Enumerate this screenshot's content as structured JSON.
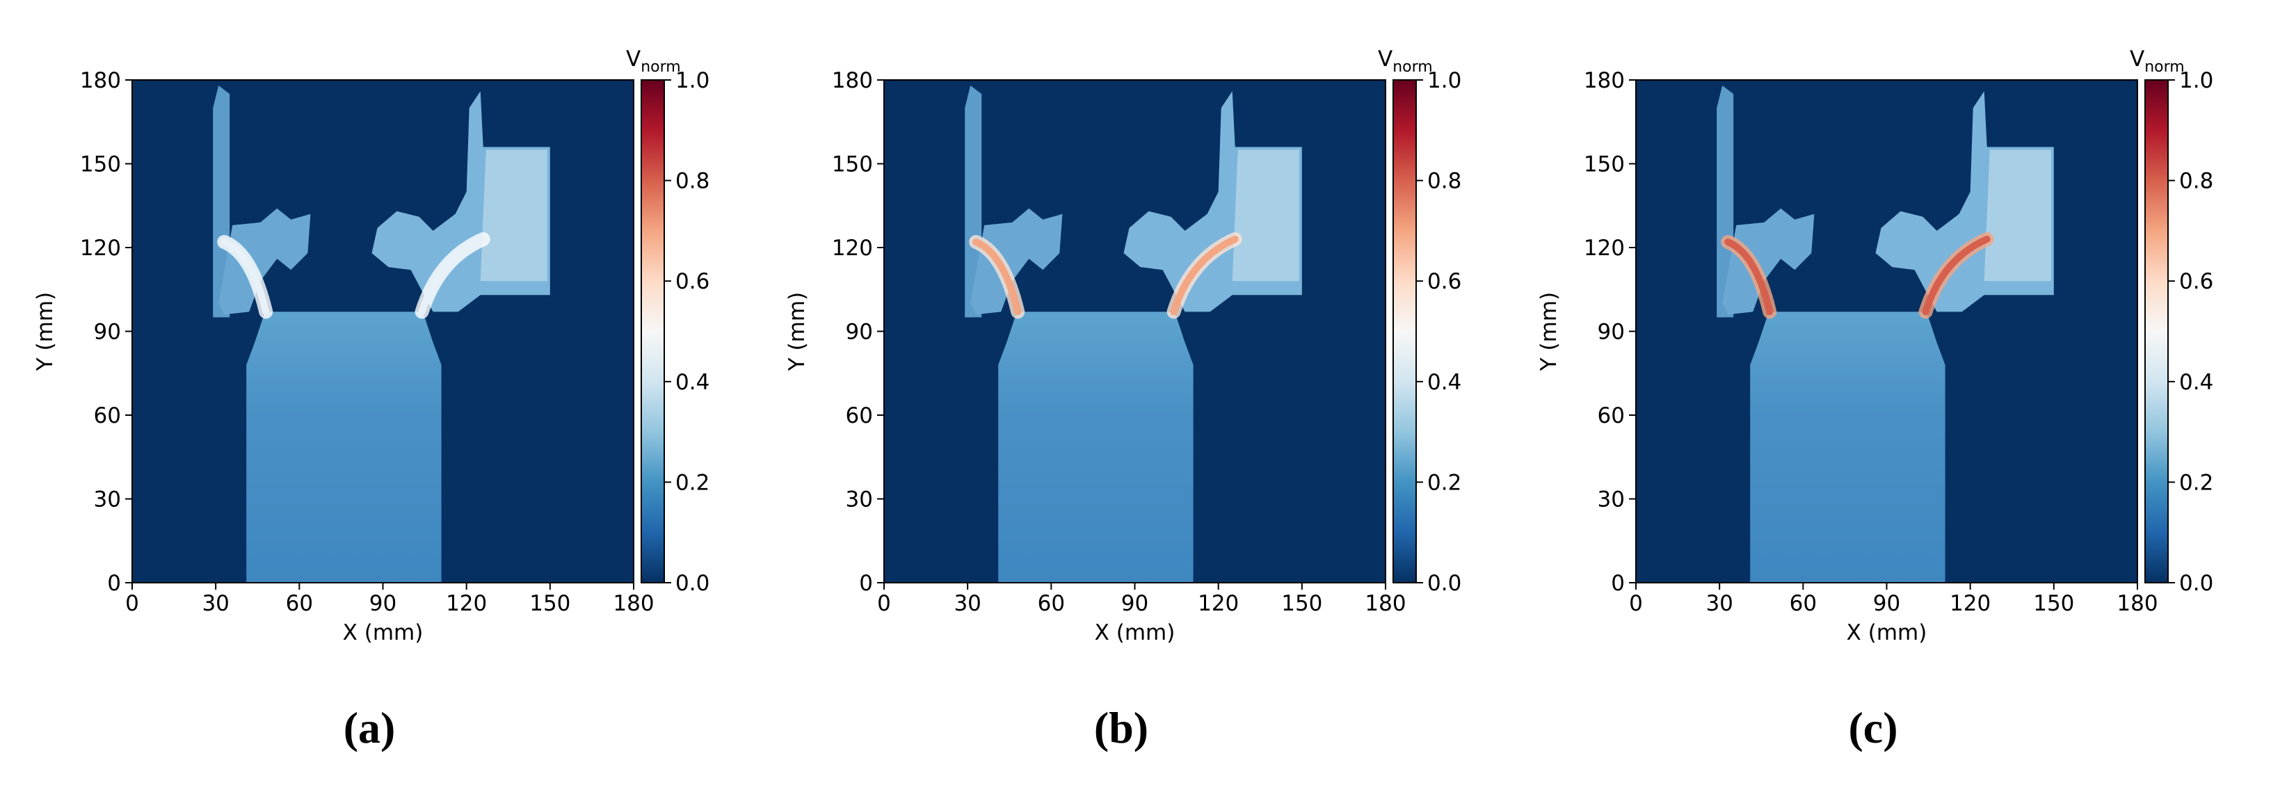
{
  "chart_data": [
    {
      "type": "heatmap",
      "caption": "(a)",
      "xlabel": "X (mm)",
      "ylabel": "Y (mm)",
      "xlim": [
        0,
        180
      ],
      "ylim": [
        0,
        180
      ],
      "xticks": [
        0,
        30,
        60,
        90,
        120,
        150,
        180
      ],
      "yticks": [
        0,
        30,
        60,
        90,
        120,
        150,
        180
      ],
      "colormap": "RdBu_r",
      "clim": [
        0,
        1
      ],
      "colorbar_label": {
        "main": "V",
        "sub": "norm"
      },
      "cticks": [
        {
          "value": 0,
          "label": "0.0"
        },
        0.2,
        0.4,
        0.6,
        0.8,
        {
          "value": 1,
          "label": "1.0"
        }
      ]
    },
    {
      "type": "heatmap",
      "caption": "(b)",
      "xlabel": "X (mm)",
      "ylabel": "Y (mm)",
      "xlim": [
        0,
        180
      ],
      "ylim": [
        0,
        180
      ],
      "xticks": [
        0,
        30,
        60,
        90,
        120,
        150,
        180
      ],
      "yticks": [
        0,
        30,
        60,
        90,
        120,
        150,
        180
      ],
      "colormap": "RdBu_r",
      "clim": [
        0,
        1
      ],
      "colorbar_label": {
        "main": "V",
        "sub": "norm"
      },
      "cticks": [
        {
          "value": 0,
          "label": "0.0"
        },
        0.2,
        0.4,
        0.6,
        0.8,
        {
          "value": 1,
          "label": "1.0"
        }
      ]
    },
    {
      "type": "heatmap",
      "caption": "(c)",
      "xlabel": "X (mm)",
      "ylabel": "Y (mm)",
      "xlim": [
        0,
        180
      ],
      "ylim": [
        0,
        180
      ],
      "xticks": [
        0,
        30,
        60,
        90,
        120,
        150,
        180
      ],
      "yticks": [
        0,
        30,
        60,
        90,
        120,
        150,
        180
      ],
      "colormap": "RdBu_r",
      "clim": [
        0,
        1
      ],
      "colorbar_label": {
        "main": "V",
        "sub": "norm"
      },
      "cticks": [
        {
          "value": 0,
          "label": "0.0"
        },
        0.2,
        0.4,
        0.6,
        0.8,
        {
          "value": 1,
          "label": "1.0"
        }
      ]
    }
  ]
}
